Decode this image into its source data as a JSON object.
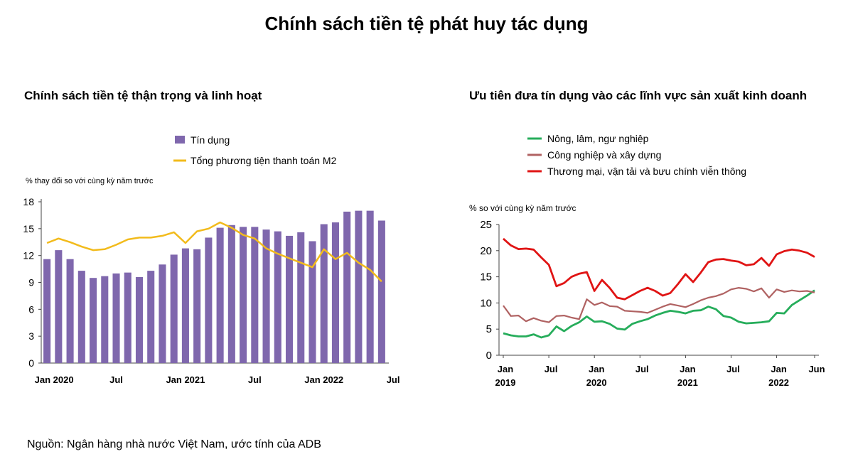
{
  "title": "Chính sách tiền tệ phát huy tác dụng",
  "source": "Nguồn: Ngân hàng nhà nước Việt Nam, ước tính của ADB",
  "colors": {
    "credit": "#7f67ad",
    "m2": "#f2bb1c",
    "agri": "#26ad5b",
    "industry": "#b06262",
    "trade": "#e01414"
  },
  "chart_data": [
    {
      "type": "bar",
      "title": "Chính sách tiền tệ thận trọng và linh hoạt",
      "ylabel": "% thay đổi so với cùng kỳ năm trước",
      "ylim": [
        0,
        18
      ],
      "yticks": [
        "0",
        "3",
        "6",
        "9",
        "12",
        "15",
        "18"
      ],
      "xtick_labels": [
        {
          "index": 0,
          "label": "Jan 2020"
        },
        {
          "index": 6,
          "label": "Jul"
        },
        {
          "index": 12,
          "label": "Jan 2021"
        },
        {
          "index": 18,
          "label": "Jul"
        },
        {
          "index": 24,
          "label": "Jan 2022"
        },
        {
          "index": 30,
          "label": "Jul"
        }
      ],
      "series": [
        {
          "name": "Tín dụng",
          "kind": "bar",
          "values": [
            11.6,
            12.6,
            11.6,
            10.3,
            9.5,
            9.7,
            10.0,
            10.1,
            9.6,
            10.3,
            11.0,
            12.1,
            12.8,
            12.7,
            14.0,
            15.1,
            15.4,
            15.2,
            15.2,
            14.9,
            14.7,
            14.2,
            14.6,
            13.6,
            15.5,
            15.7,
            16.9,
            17.0,
            17.0,
            15.9
          ]
        },
        {
          "name": "Tổng phương tiện thanh toán M2",
          "kind": "line",
          "values": [
            13.4,
            13.9,
            13.5,
            13.0,
            12.6,
            12.7,
            13.2,
            13.8,
            14.0,
            14.0,
            14.2,
            14.6,
            13.4,
            14.7,
            15.0,
            15.7,
            15.1,
            14.3,
            13.9,
            12.8,
            12.2,
            11.7,
            11.2,
            10.7,
            12.7,
            11.6,
            12.3,
            11.2,
            10.4,
            9.1
          ]
        }
      ]
    },
    {
      "type": "line",
      "title": "Ưu tiên đưa tín dụng vào các lĩnh vực sản xuất kinh doanh",
      "ylabel": "% so với cùng kỳ năm trước",
      "ylim": [
        0,
        25
      ],
      "yticks": [
        "0",
        "5",
        "10",
        "15",
        "20",
        "25"
      ],
      "xtick_labels": [
        {
          "index": 0,
          "label": "Jan",
          "sub": "2019"
        },
        {
          "index": 6,
          "label": "Jul",
          "sub": ""
        },
        {
          "index": 12,
          "label": "Jan",
          "sub": "2020"
        },
        {
          "index": 18,
          "label": "Jul",
          "sub": ""
        },
        {
          "index": 24,
          "label": "Jan",
          "sub": "2021"
        },
        {
          "index": 30,
          "label": "Jul",
          "sub": ""
        },
        {
          "index": 36,
          "label": "Jan",
          "sub": "2022"
        },
        {
          "index": 41,
          "label": "Jun",
          "sub": ""
        }
      ],
      "series": [
        {
          "name": "Nông, lâm, ngư nghiệp",
          "values": [
            4.2,
            3.8,
            3.6,
            3.6,
            4.0,
            3.4,
            3.8,
            5.5,
            4.6,
            5.6,
            6.3,
            7.4,
            6.4,
            6.5,
            6.0,
            5.1,
            4.9,
            6.0,
            6.5,
            6.9,
            7.6,
            8.1,
            8.5,
            8.3,
            8.0,
            8.5,
            8.6,
            9.3,
            8.8,
            7.5,
            7.2,
            6.4,
            6.1,
            6.2,
            6.3,
            6.5,
            8.1,
            8.0,
            9.6,
            10.5,
            11.4,
            12.4
          ]
        },
        {
          "name": "Công nghiệp và xây dựng",
          "values": [
            9.5,
            7.5,
            7.6,
            6.5,
            7.1,
            6.6,
            6.3,
            7.5,
            7.6,
            7.2,
            6.9,
            10.7,
            9.6,
            10.1,
            9.4,
            9.3,
            8.5,
            8.4,
            8.3,
            8.1,
            8.7,
            9.3,
            9.8,
            9.5,
            9.2,
            9.8,
            10.5,
            11.0,
            11.3,
            11.8,
            12.6,
            12.9,
            12.7,
            12.2,
            12.8,
            11.0,
            12.6,
            12.1,
            12.4,
            12.2,
            12.3,
            12.0
          ]
        },
        {
          "name": "Thương mại, vận tải và bưu chính viễn thông",
          "values": [
            22.3,
            21.0,
            20.3,
            20.4,
            20.2,
            18.7,
            17.3,
            13.2,
            13.8,
            15.0,
            15.6,
            15.9,
            12.3,
            14.4,
            12.9,
            11.0,
            10.7,
            11.5,
            12.3,
            12.9,
            12.3,
            11.4,
            11.9,
            13.6,
            15.5,
            14.0,
            15.8,
            17.8,
            18.3,
            18.4,
            18.1,
            17.9,
            17.2,
            17.4,
            18.6,
            17.1,
            19.3,
            19.9,
            20.2,
            20.0,
            19.6,
            18.8
          ]
        }
      ]
    }
  ]
}
